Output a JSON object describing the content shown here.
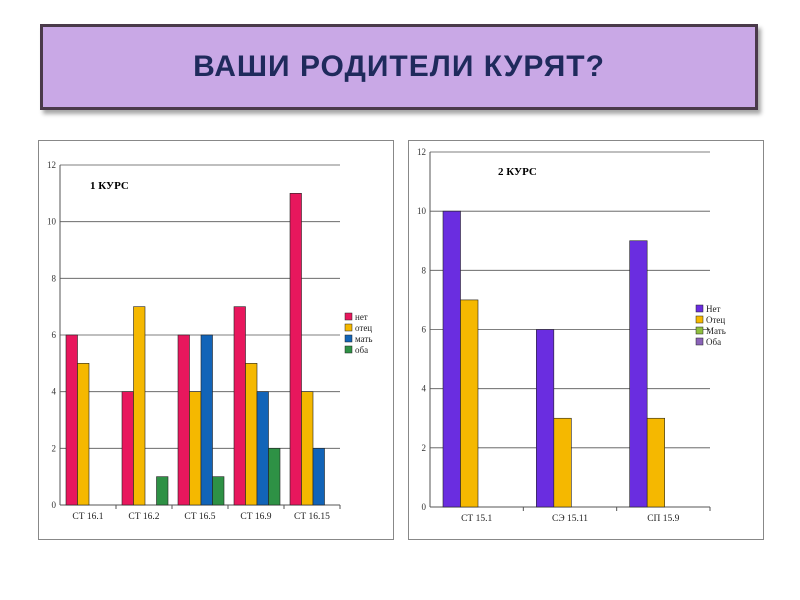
{
  "title": "ВАШИ РОДИТЕЛИ КУРЯТ?",
  "chart_data": [
    {
      "type": "bar",
      "title": "1 КУРС",
      "categories": [
        "СТ 16.1",
        "СТ 16.2",
        "СТ 16.5",
        "СТ 16.9",
        "СТ 16.15"
      ],
      "series": [
        {
          "name": "нет",
          "color": "#e8175d",
          "values": [
            6,
            4,
            6,
            7,
            11
          ]
        },
        {
          "name": "отец",
          "color": "#f5b800",
          "values": [
            5,
            7,
            4,
            5,
            4
          ]
        },
        {
          "name": "мать",
          "color": "#1264b8",
          "values": [
            0,
            0,
            6,
            4,
            2
          ]
        },
        {
          "name": "оба",
          "color": "#2e9145",
          "values": [
            0,
            1,
            1,
            2,
            0
          ]
        }
      ],
      "yticks": [
        "0",
        "2",
        "4",
        "6",
        "8",
        "10",
        "12"
      ],
      "ylim": [
        0,
        12
      ],
      "grid": true,
      "legend": "right"
    },
    {
      "type": "bar",
      "title": "2 КУРС",
      "categories": [
        "СТ 15.1",
        "СЭ 15.11",
        "СП 15.9"
      ],
      "series": [
        {
          "name": "Нет",
          "color": "#6a2de0",
          "values": [
            10,
            6,
            9
          ]
        },
        {
          "name": "Отец",
          "color": "#f5b800",
          "values": [
            7,
            3,
            3
          ]
        },
        {
          "name": "Мать",
          "color": "#8fbf3f",
          "values": [
            0,
            0,
            0
          ]
        },
        {
          "name": "Оба",
          "color": "#8a63b8",
          "values": [
            0,
            0,
            0
          ]
        }
      ],
      "yticks": [
        "0",
        "2",
        "4",
        "6",
        "8",
        "10",
        "12"
      ],
      "ylim": [
        0,
        12
      ],
      "grid": true,
      "legend": "right"
    }
  ]
}
